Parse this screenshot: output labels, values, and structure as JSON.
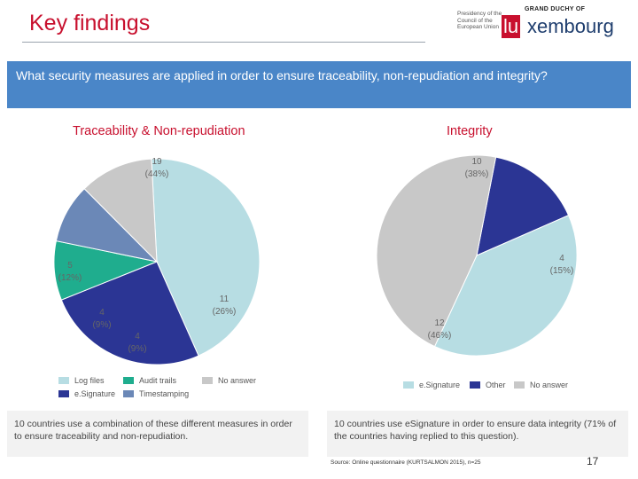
{
  "header": {
    "title": "Key findings",
    "logo": {
      "presidency_text": "Presidency of the Council of the European Union",
      "grand_duchy": "GRAND DUCHY OF",
      "lu": "lu",
      "rest": "xembourg"
    }
  },
  "question": "What security measures are applied in order to ensure traceability, non-repudiation and integrity?",
  "chart_data": [
    {
      "type": "pie",
      "title": "Traceability & Non-repudiation",
      "categories": [
        "Log files",
        "e.Signature",
        "Audit trails",
        "Timestamping",
        "No answer"
      ],
      "values": [
        19,
        11,
        4,
        4,
        5
      ],
      "labels": [
        "19",
        "11",
        "4",
        "4",
        "5"
      ],
      "percent_labels": [
        "(44%)",
        "(26%)",
        "(9%)",
        "(9%)",
        "(12%)"
      ],
      "colors": [
        "#b7dde3",
        "#2b3594",
        "#1fad8e",
        "#6b88b7",
        "#c8c8c8"
      ],
      "legend": [
        "Log files",
        "Audit trails",
        "No answer",
        "e.Signature",
        "Timestamping"
      ],
      "legend_colors": [
        "#b7dde3",
        "#1fad8e",
        "#c8c8c8",
        "#2b3594",
        "#6b88b7"
      ]
    },
    {
      "type": "pie",
      "title": "Integrity",
      "categories": [
        "Other",
        "e.Signature",
        "No answer"
      ],
      "values": [
        4,
        10,
        12
      ],
      "labels": [
        "4",
        "10",
        "12"
      ],
      "percent_labels": [
        "(15%)",
        "(38%)",
        "(46%)"
      ],
      "colors": [
        "#2b3594",
        "#b7dde3",
        "#c8c8c8"
      ],
      "legend": [
        "e.Signature",
        "Other",
        "No answer"
      ],
      "legend_colors": [
        "#b7dde3",
        "#2b3594",
        "#c8c8c8"
      ]
    }
  ],
  "notes": {
    "left": "10 countries use a combination of these different measures in order to ensure traceability and non-repudiation.",
    "right": "10 countries use eSignature in order to ensure data integrity (71% of the countries having replied to this question)."
  },
  "source": "Source: Online questionnaire (KURTSALMON 2015), n=25",
  "page_number": "17"
}
